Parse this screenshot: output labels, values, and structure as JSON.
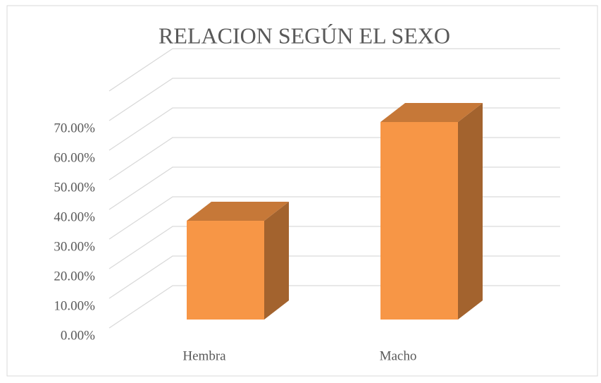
{
  "chart_data": {
    "type": "bar3d",
    "title": "RELACION SEGÚN EL SEXO",
    "categories": [
      "Hembra",
      "Macho"
    ],
    "values": [
      33.33,
      66.67
    ],
    "color": "#f79646",
    "ylim": [
      0,
      80
    ],
    "yticks": [
      {
        "value": 0,
        "label": "0.00%"
      },
      {
        "value": 10,
        "label": "10.00%"
      },
      {
        "value": 20,
        "label": "20.00%"
      },
      {
        "value": 30,
        "label": "30.00%"
      },
      {
        "value": 40,
        "label": "40.00%"
      },
      {
        "value": 50,
        "label": "50.00%"
      },
      {
        "value": 60,
        "label": "60.00%"
      },
      {
        "value": 70,
        "label": "70.00%"
      }
    ],
    "grid": true
  }
}
